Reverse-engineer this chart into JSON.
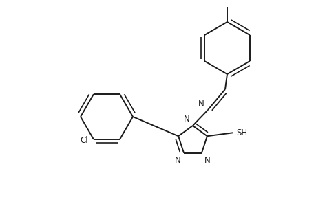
{
  "bg_color": "#ffffff",
  "line_color": "#1a1a1a",
  "line_width": 1.4,
  "figsize": [
    4.6,
    3.0
  ],
  "dpi": 100,
  "xlim": [
    0.0,
    4.6
  ],
  "ylim": [
    0.0,
    3.0
  ]
}
